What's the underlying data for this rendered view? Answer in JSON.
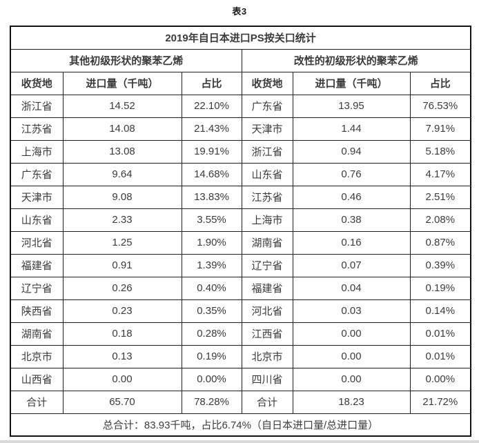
{
  "page_title": "表3",
  "table": {
    "title": "2019年自日本进口PS按关口统计",
    "groups": [
      {
        "label": "其他初级形状的聚苯乙烯"
      },
      {
        "label": "改性的初级形状的聚苯乙烯"
      }
    ],
    "columns": [
      "收货地",
      "进口量（千吨）",
      "占比"
    ],
    "left_rows": [
      [
        "浙江省",
        "14.52",
        "22.10%"
      ],
      [
        "江苏省",
        "14.08",
        "21.43%"
      ],
      [
        "上海市",
        "13.08",
        "19.91%"
      ],
      [
        "广东省",
        "9.64",
        "14.68%"
      ],
      [
        "天津市",
        "9.08",
        "13.83%"
      ],
      [
        "山东省",
        "2.33",
        "3.55%"
      ],
      [
        "河北省",
        "1.25",
        "1.90%"
      ],
      [
        "福建省",
        "0.91",
        "1.39%"
      ],
      [
        "辽宁省",
        "0.26",
        "0.40%"
      ],
      [
        "陕西省",
        "0.23",
        "0.35%"
      ],
      [
        "湖南省",
        "0.18",
        "0.28%"
      ],
      [
        "北京市",
        "0.13",
        "0.19%"
      ],
      [
        "山西省",
        "0.00",
        "0.00%"
      ]
    ],
    "right_rows": [
      [
        "广东省",
        "13.95",
        "76.53%"
      ],
      [
        "天津市",
        "1.44",
        "7.91%"
      ],
      [
        "浙江省",
        "0.94",
        "5.18%"
      ],
      [
        "山东省",
        "0.76",
        "4.17%"
      ],
      [
        "江苏省",
        "0.46",
        "2.51%"
      ],
      [
        "上海市",
        "0.38",
        "2.08%"
      ],
      [
        "湖南省",
        "0.16",
        "0.87%"
      ],
      [
        "辽宁省",
        "0.07",
        "0.39%"
      ],
      [
        "福建省",
        "0.04",
        "0.19%"
      ],
      [
        "河北省",
        "0.03",
        "0.14%"
      ],
      [
        "江西省",
        "0.00",
        "0.01%"
      ],
      [
        "北京市",
        "0.00",
        "0.01%"
      ],
      [
        "四川省",
        "0.00",
        "0.00%"
      ]
    ],
    "left_total": [
      "合计",
      "65.70",
      "78.28%"
    ],
    "right_total": [
      "合计",
      "18.23",
      "21.72%"
    ],
    "footer": "总合计：83.93千吨，占比6.74%（自日本进口量/总进口量）"
  }
}
